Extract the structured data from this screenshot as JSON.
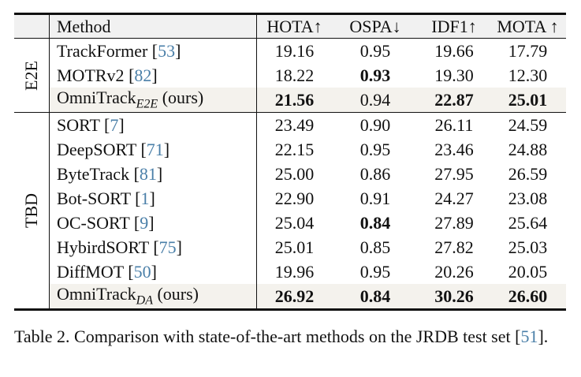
{
  "table": {
    "headers": [
      "Method",
      "HOTA↑",
      "OSPA↓",
      "IDF1↑",
      "MOTA ↑"
    ],
    "groups": [
      {
        "label": "E2E",
        "rows": [
          {
            "name": "TrackFormer",
            "cite": "53",
            "sub": "",
            "suffix": "",
            "values": [
              "19.16",
              "0.95",
              "19.66",
              "17.79"
            ],
            "bold": [
              false,
              false,
              false,
              false
            ],
            "highlight": false
          },
          {
            "name": "MOTRv2",
            "cite": "82",
            "sub": "",
            "suffix": "",
            "values": [
              "18.22",
              "0.93",
              "19.30",
              "12.30"
            ],
            "bold": [
              false,
              true,
              false,
              false
            ],
            "highlight": false
          },
          {
            "name": "OmniTrack",
            "cite": "",
            "sub": "E2E",
            "suffix": "(ours)",
            "values": [
              "21.56",
              "0.94",
              "22.87",
              "25.01"
            ],
            "bold": [
              true,
              false,
              true,
              true
            ],
            "highlight": true
          }
        ]
      },
      {
        "label": "TBD",
        "rows": [
          {
            "name": "SORT",
            "cite": "7",
            "sub": "",
            "suffix": "",
            "values": [
              "23.49",
              "0.90",
              "26.11",
              "24.59"
            ],
            "bold": [
              false,
              false,
              false,
              false
            ],
            "highlight": false
          },
          {
            "name": "DeepSORT",
            "cite": "71",
            "sub": "",
            "suffix": "",
            "values": [
              "22.15",
              "0.95",
              "23.46",
              "24.88"
            ],
            "bold": [
              false,
              false,
              false,
              false
            ],
            "highlight": false
          },
          {
            "name": "ByteTrack",
            "cite": "81",
            "sub": "",
            "suffix": "",
            "values": [
              "25.00",
              "0.86",
              "27.95",
              "26.59"
            ],
            "bold": [
              false,
              false,
              false,
              false
            ],
            "highlight": false
          },
          {
            "name": "Bot-SORT",
            "cite": "1",
            "sub": "",
            "suffix": "",
            "values": [
              "22.90",
              "0.91",
              "24.27",
              "23.08"
            ],
            "bold": [
              false,
              false,
              false,
              false
            ],
            "highlight": false
          },
          {
            "name": "OC-SORT",
            "cite": "9",
            "sub": "",
            "suffix": "",
            "values": [
              "25.04",
              "0.84",
              "27.89",
              "25.64"
            ],
            "bold": [
              false,
              true,
              false,
              false
            ],
            "highlight": false
          },
          {
            "name": "HybirdSORT",
            "cite": "75",
            "sub": "",
            "suffix": "",
            "values": [
              "25.01",
              "0.85",
              "27.82",
              "25.03"
            ],
            "bold": [
              false,
              false,
              false,
              false
            ],
            "highlight": false
          },
          {
            "name": "DiffMOT",
            "cite": "50",
            "sub": "",
            "suffix": "",
            "values": [
              "19.96",
              "0.95",
              "20.26",
              "20.05"
            ],
            "bold": [
              false,
              false,
              false,
              false
            ],
            "highlight": false
          },
          {
            "name": "OmniTrack",
            "cite": "",
            "sub": "DA",
            "suffix": "(ours)",
            "values": [
              "26.92",
              "0.84",
              "30.26",
              "26.60"
            ],
            "bold": [
              true,
              true,
              true,
              true
            ],
            "highlight": true
          }
        ]
      }
    ]
  },
  "caption": {
    "text": "Table 2.  Comparison with state-of-the-art methods on the JRDB test set [",
    "cite": "51",
    "end": "]."
  },
  "colors": {
    "citation": "#4a7fa8",
    "highlight_row": "#f4f2ed",
    "header_row": "#f1f1f1"
  }
}
